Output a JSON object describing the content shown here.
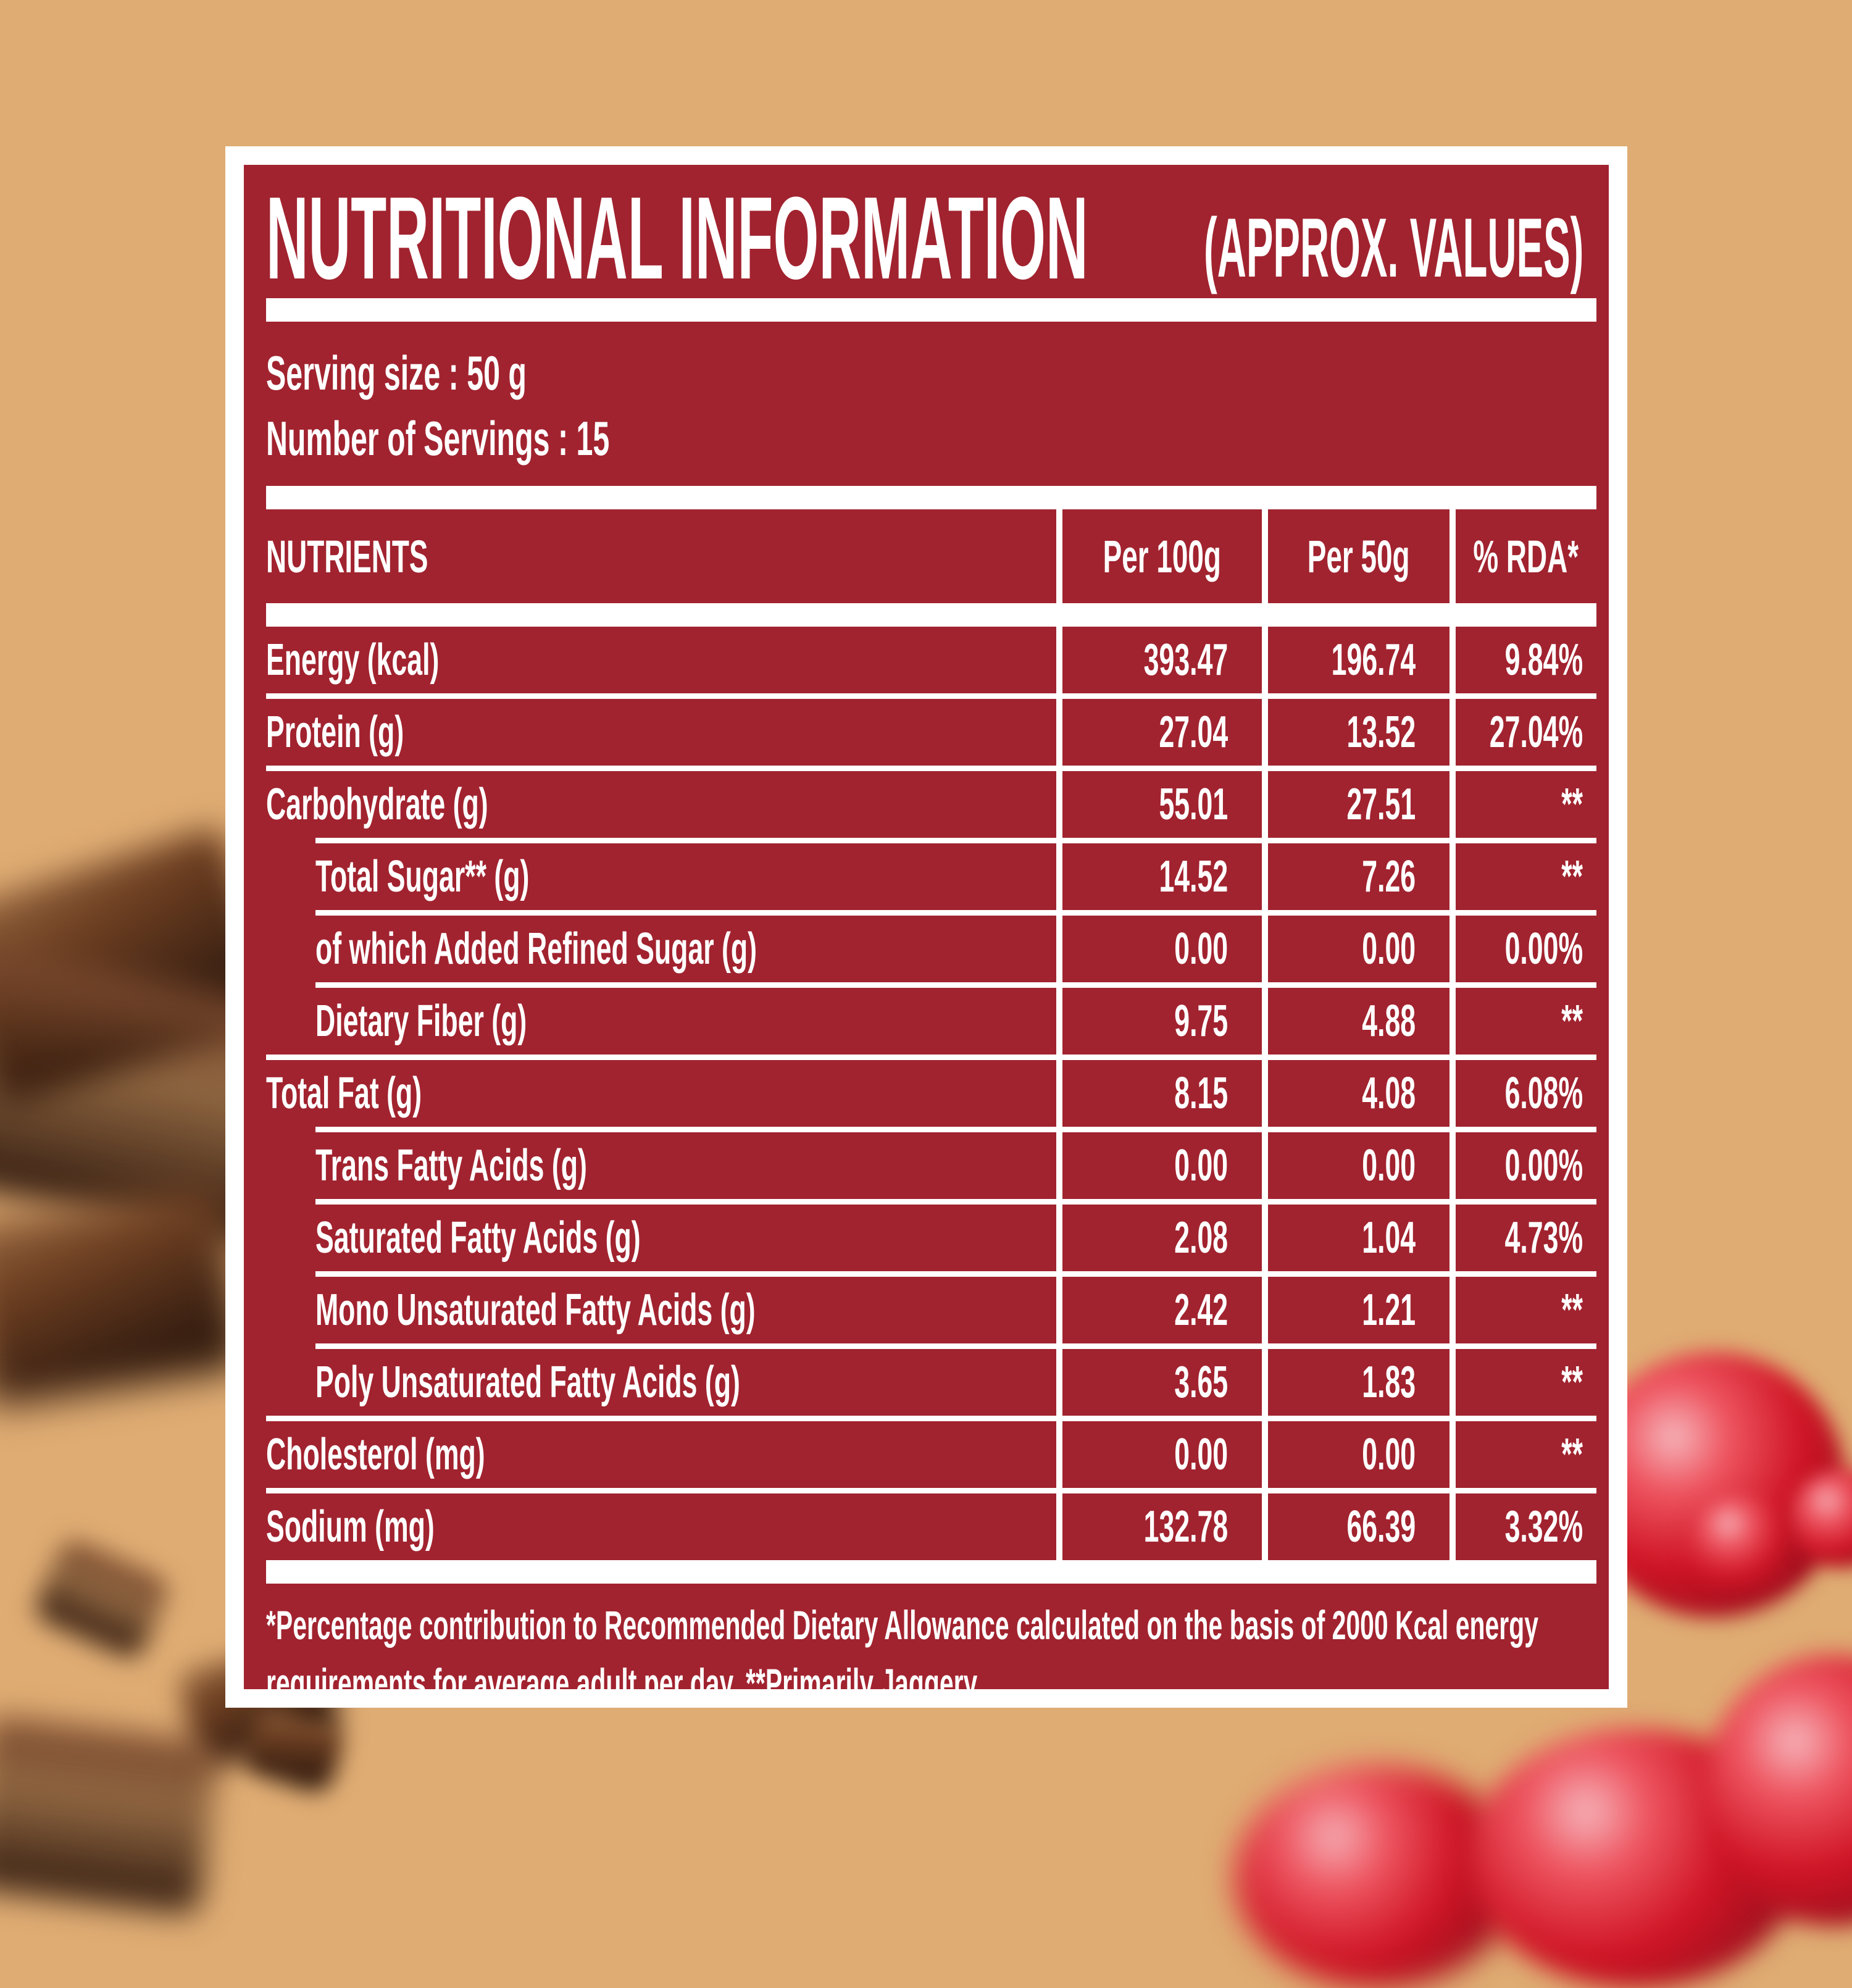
{
  "page": {
    "background_color": "#DFAC73",
    "panel_color": "#A1232F",
    "frame_color": "#FFFFFF"
  },
  "label": {
    "title": "NUTRITIONAL INFORMATION",
    "title_suffix": "(APPROX. VALUES)",
    "serving_size": "Serving size : 50 g",
    "servings_count": "Number of Servings : 15",
    "table": {
      "headers": [
        "NUTRIENTS",
        "Per 100g",
        "Per 50g",
        "% RDA*"
      ],
      "rows": [
        {
          "label": "Energy (kcal)",
          "indent": false,
          "per_100g": "393.47",
          "per_50g": "196.74",
          "rda": "9.84%"
        },
        {
          "label": "Protein (g)",
          "indent": false,
          "per_100g": "27.04",
          "per_50g": "13.52",
          "rda": "27.04%"
        },
        {
          "label": "Carbohydrate (g)",
          "indent": false,
          "per_100g": "55.01",
          "per_50g": "27.51",
          "rda": "**"
        },
        {
          "label": "Total Sugar** (g)",
          "indent": true,
          "per_100g": "14.52",
          "per_50g": "7.26",
          "rda": "**"
        },
        {
          "label": "of which Added Refined Sugar (g)",
          "indent": true,
          "per_100g": "0.00",
          "per_50g": "0.00",
          "rda": "0.00%"
        },
        {
          "label": "Dietary Fiber (g)",
          "indent": true,
          "per_100g": "9.75",
          "per_50g": "4.88",
          "rda": "**"
        },
        {
          "label": "Total Fat (g)",
          "indent": false,
          "per_100g": "8.15",
          "per_50g": "4.08",
          "rda": "6.08%"
        },
        {
          "label": "Trans Fatty Acids (g)",
          "indent": true,
          "per_100g": "0.00",
          "per_50g": "0.00",
          "rda": "0.00%"
        },
        {
          "label": "Saturated Fatty Acids (g)",
          "indent": true,
          "per_100g": "2.08",
          "per_50g": "1.04",
          "rda": "4.73%"
        },
        {
          "label": "Mono Unsaturated Fatty Acids (g)",
          "indent": true,
          "per_100g": "2.42",
          "per_50g": "1.21",
          "rda": "**"
        },
        {
          "label": "Poly Unsaturated Fatty Acids (g)",
          "indent": true,
          "per_100g": "3.65",
          "per_50g": "1.83",
          "rda": "**"
        },
        {
          "label": "Cholesterol (mg)",
          "indent": false,
          "per_100g": "0.00",
          "per_50g": "0.00",
          "rda": "**"
        },
        {
          "label": "Sodium (mg)",
          "indent": false,
          "per_100g": "132.78",
          "per_50g": "66.39",
          "rda": "3.32%"
        }
      ]
    },
    "footnote_line1": "*Percentage contribution to Recommended Dietary Allowance calculated on the basis of 2000 Kcal energy",
    "footnote_line2": "requirements for average adult per day. **Primarily Jaggery."
  }
}
